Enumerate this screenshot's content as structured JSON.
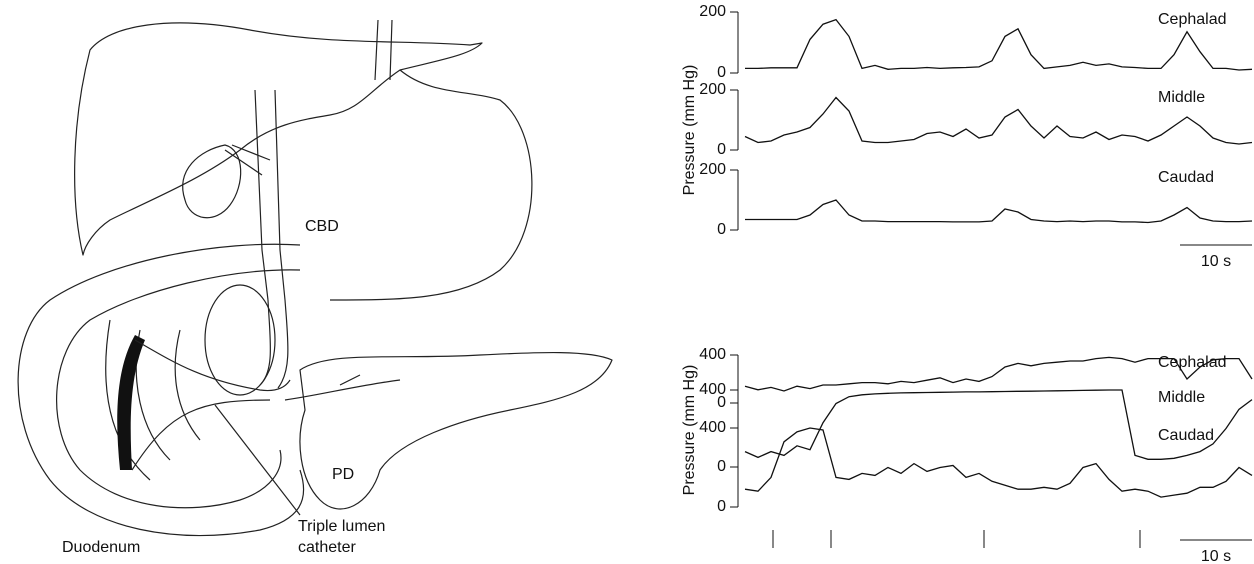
{
  "figure": {
    "drawing_labels": {
      "cbd": "CBD",
      "pd": "PD",
      "duodenum": "Duodenum",
      "catheter": [
        "Triple lumen",
        "catheter"
      ]
    },
    "panels": [
      {
        "y_label": "Pressure (mm Hg)",
        "scale_bar": "10 s",
        "traces": [
          {
            "name": "Cephalad",
            "ylim": [
              0,
              200
            ],
            "yticks": [
              0,
              200
            ],
            "values": [
              15,
              15,
              17,
              17,
              17,
              110,
              160,
              175,
              120,
              15,
              25,
              12,
              15,
              15,
              18,
              15,
              17,
              18,
              20,
              40,
              120,
              145,
              60,
              15,
              20,
              25,
              35,
              25,
              30,
              20,
              18,
              15,
              15,
              60,
              135,
              70,
              15,
              15,
              10,
              12
            ]
          },
          {
            "name": "Middle",
            "ylim": [
              0,
              200
            ],
            "yticks": [
              0,
              200
            ],
            "values": [
              45,
              25,
              30,
              50,
              60,
              75,
              120,
              175,
              130,
              30,
              25,
              25,
              30,
              35,
              55,
              60,
              45,
              70,
              40,
              50,
              110,
              135,
              80,
              40,
              80,
              45,
              40,
              60,
              35,
              50,
              45,
              30,
              50,
              80,
              110,
              80,
              40,
              25,
              20,
              25
            ]
          },
          {
            "name": "Caudad",
            "ylim": [
              0,
              200
            ],
            "yticks": [
              0,
              200
            ],
            "values": [
              35,
              35,
              35,
              35,
              35,
              50,
              85,
              100,
              50,
              30,
              30,
              28,
              28,
              28,
              28,
              28,
              27,
              27,
              27,
              30,
              70,
              60,
              35,
              30,
              28,
              30,
              28,
              30,
              30,
              27,
              27,
              25,
              30,
              50,
              75,
              40,
              30,
              28,
              28,
              30
            ]
          }
        ]
      },
      {
        "y_label": "Pressure (mm Hg)",
        "scale_bar": "10 s",
        "traces": [
          {
            "name": "Cephalad",
            "ylim": [
              0,
              400
            ],
            "yticks": [
              0,
              400
            ],
            "values": [
              140,
              110,
              130,
              100,
              140,
              120,
              150,
              150,
              160,
              170,
              170,
              160,
              180,
              170,
              190,
              210,
              170,
              200,
              180,
              220,
              300,
              330,
              310,
              330,
              340,
              350,
              350,
              370,
              380,
              370,
              340,
              370,
              370,
              370,
              200,
              300,
              360,
              370,
              370,
              200
            ]
          },
          {
            "name": "Middle",
            "ylim": [
              0,
              400
            ],
            "yticks": [
              0,
              400
            ],
            "values": [
              80,
              50,
              80,
              60,
              110,
              90,
              230,
              330,
              365,
              375,
              380,
              383,
              385,
              386,
              387,
              388,
              389,
              390,
              390,
              391,
              392,
              393,
              394,
              395,
              396,
              397,
              398,
              399,
              400,
              400,
              60,
              40,
              40,
              45,
              60,
              80,
              120,
              200,
              300,
              350
            ]
          },
          {
            "name": "Caudad",
            "ylim": [
              0,
              400
            ],
            "yticks": [
              0,
              400
            ],
            "values": [
              90,
              80,
              150,
              330,
              380,
              400,
              390,
              150,
              140,
              170,
              160,
              200,
              170,
              220,
              180,
              200,
              210,
              150,
              170,
              130,
              110,
              90,
              90,
              100,
              90,
              120,
              200,
              220,
              140,
              80,
              90,
              80,
              50,
              60,
              70,
              100,
              100,
              130,
              200,
              160
            ]
          }
        ]
      }
    ]
  }
}
